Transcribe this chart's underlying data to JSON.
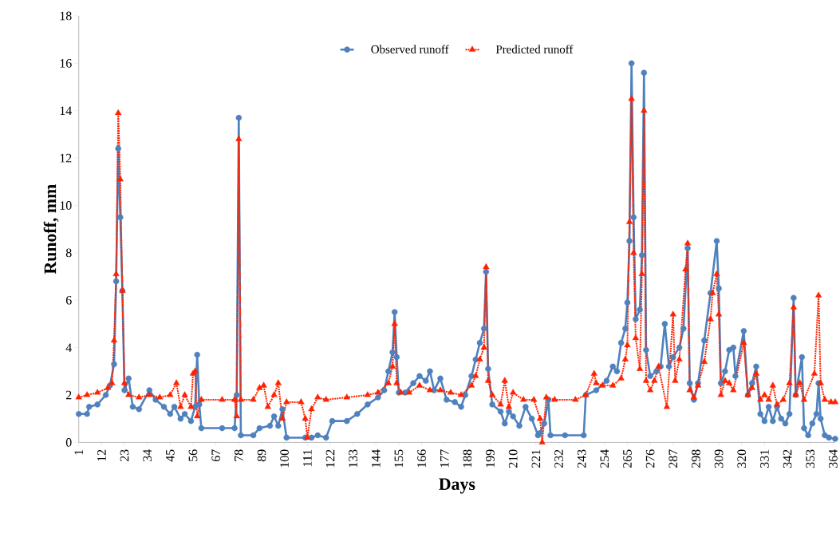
{
  "chart_data": {
    "type": "line",
    "xlabel": "Days",
    "ylabel": "Runoff, mm",
    "xlim": [
      1,
      365
    ],
    "xticks": [
      1,
      12,
      23,
      34,
      45,
      56,
      67,
      78,
      89,
      100,
      111,
      122,
      133,
      144,
      155,
      166,
      177,
      188,
      199,
      210,
      221,
      232,
      243,
      254,
      265,
      276,
      287,
      298,
      309,
      320,
      331,
      342,
      353,
      364
    ],
    "ylim": [
      0,
      18
    ],
    "yticks": [
      0,
      2,
      4,
      6,
      8,
      10,
      12,
      14,
      16,
      18
    ],
    "legend": "top",
    "grid": false,
    "series": [
      {
        "name": "Observed runoff",
        "color": "#4f81bd",
        "marker": "circle",
        "line_style": "solid",
        "x": [
          1,
          5,
          6,
          10,
          14,
          16,
          18,
          19,
          20,
          21,
          22,
          23,
          25,
          27,
          30,
          35,
          38,
          42,
          45,
          47,
          50,
          52,
          55,
          57,
          58,
          59,
          60,
          70,
          76,
          77,
          78,
          79,
          85,
          88,
          93,
          95,
          97,
          99,
          101,
          110,
          113,
          116,
          120,
          123,
          130,
          135,
          140,
          145,
          148,
          150,
          152,
          153,
          154,
          155,
          158,
          162,
          165,
          168,
          170,
          172,
          175,
          178,
          182,
          185,
          187,
          190,
          192,
          194,
          196,
          197,
          198,
          200,
          204,
          206,
          208,
          210,
          213,
          216,
          219,
          222,
          223,
          225,
          227,
          228,
          235,
          244,
          245,
          250,
          255,
          258,
          260,
          262,
          264,
          265,
          266,
          267,
          268,
          269,
          271,
          272,
          273,
          274,
          276,
          279,
          281,
          283,
          285,
          287,
          290,
          292,
          294,
          295,
          297,
          299,
          302,
          305,
          308,
          309,
          310,
          312,
          314,
          316,
          317,
          321,
          323,
          325,
          327,
          329,
          331,
          333,
          335,
          337,
          339,
          341,
          343,
          345,
          346,
          349,
          350,
          352,
          354,
          356,
          357,
          358,
          360,
          362,
          365
        ],
        "values": [
          1.2,
          1.2,
          1.5,
          1.6,
          2.0,
          2.4,
          3.3,
          6.8,
          12.4,
          9.5,
          6.4,
          2.2,
          2.7,
          1.5,
          1.4,
          2.2,
          1.8,
          1.5,
          1.2,
          1.5,
          1.0,
          1.2,
          0.9,
          1.5,
          3.7,
          1.6,
          0.6,
          0.6,
          0.6,
          2.0,
          13.7,
          0.3,
          0.3,
          0.6,
          0.7,
          1.1,
          0.7,
          1.4,
          0.2,
          0.2,
          0.2,
          0.3,
          0.2,
          0.9,
          0.9,
          1.2,
          1.6,
          1.9,
          2.2,
          3.0,
          3.8,
          5.5,
          3.6,
          2.1,
          2.1,
          2.5,
          2.8,
          2.6,
          3.0,
          2.2,
          2.7,
          1.8,
          1.7,
          1.5,
          2.0,
          2.8,
          3.5,
          4.2,
          4.8,
          7.2,
          3.1,
          1.6,
          1.3,
          0.8,
          1.3,
          1.1,
          0.7,
          1.5,
          1.0,
          0.3,
          0.4,
          0.8,
          1.8,
          0.3,
          0.3,
          0.3,
          2.0,
          2.2,
          2.6,
          3.2,
          3.0,
          4.2,
          4.8,
          5.9,
          8.5,
          16.0,
          9.5,
          5.2,
          5.6,
          7.9,
          15.6,
          3.9,
          2.8,
          3.0,
          3.2,
          5.0,
          3.2,
          3.6,
          4.0,
          4.8,
          8.2,
          2.5,
          1.8,
          2.5,
          4.3,
          6.3,
          8.5,
          6.5,
          2.5,
          3.0,
          3.9,
          4.0,
          2.8,
          4.7,
          2.0,
          2.5,
          3.2,
          1.2,
          0.9,
          1.5,
          0.9,
          1.5,
          1.0,
          0.8,
          1.2,
          6.1,
          2.0,
          3.6,
          0.6,
          0.3,
          0.8,
          1.2,
          2.5,
          1.0,
          0.3,
          0.2,
          0.15
        ]
      },
      {
        "name": "Predicted runoff",
        "color": "#ff2200",
        "marker": "triangle",
        "line_style": "dotted",
        "x": [
          1,
          5,
          10,
          15,
          17,
          18,
          19,
          20,
          21,
          22,
          23,
          25,
          30,
          35,
          40,
          45,
          48,
          50,
          52,
          55,
          56,
          57,
          58,
          60,
          70,
          76,
          77,
          78,
          79,
          85,
          88,
          90,
          92,
          95,
          97,
          99,
          101,
          108,
          110,
          111,
          113,
          116,
          120,
          130,
          140,
          145,
          150,
          152,
          153,
          154,
          156,
          160,
          165,
          170,
          175,
          180,
          185,
          190,
          192,
          194,
          196,
          197,
          198,
          200,
          204,
          206,
          208,
          210,
          215,
          220,
          223,
          224,
          226,
          230,
          240,
          245,
          249,
          250,
          253,
          258,
          262,
          264,
          265,
          266,
          267,
          268,
          269,
          271,
          272,
          273,
          274,
          276,
          278,
          280,
          284,
          287,
          288,
          290,
          293,
          294,
          295,
          297,
          299,
          302,
          305,
          306,
          308,
          309,
          310,
          312,
          314,
          316,
          321,
          323,
          325,
          327,
          329,
          331,
          333,
          335,
          337,
          340,
          343,
          345,
          346,
          348,
          350,
          355,
          357,
          358,
          360,
          363,
          365
        ],
        "values": [
          1.9,
          2.0,
          2.1,
          2.3,
          2.5,
          4.3,
          7.1,
          13.9,
          11.1,
          6.4,
          2.5,
          2.0,
          1.9,
          2.0,
          1.9,
          2.0,
          2.5,
          1.5,
          2.0,
          1.5,
          2.9,
          3.0,
          1.1,
          1.8,
          1.8,
          1.8,
          1.1,
          12.8,
          1.8,
          1.8,
          2.3,
          2.4,
          1.5,
          2.0,
          2.5,
          1.0,
          1.7,
          1.7,
          1.0,
          0.2,
          1.4,
          1.9,
          1.8,
          1.9,
          2.0,
          2.1,
          2.5,
          3.2,
          5.0,
          2.5,
          2.1,
          2.1,
          2.4,
          2.2,
          2.2,
          2.1,
          2.0,
          2.4,
          2.8,
          3.5,
          4.0,
          7.4,
          2.6,
          2.0,
          1.6,
          2.6,
          1.5,
          2.1,
          1.8,
          1.8,
          1.0,
          0.0,
          1.9,
          1.8,
          1.8,
          2.0,
          2.9,
          2.5,
          2.4,
          2.4,
          2.7,
          3.5,
          4.1,
          9.3,
          14.5,
          8.0,
          4.4,
          3.1,
          7.1,
          14.0,
          2.6,
          2.2,
          2.6,
          3.2,
          1.5,
          5.4,
          2.6,
          3.5,
          7.3,
          8.4,
          2.2,
          1.9,
          2.4,
          3.4,
          5.2,
          6.3,
          7.1,
          5.4,
          2.0,
          2.6,
          2.5,
          2.2,
          4.2,
          2.0,
          2.3,
          2.9,
          1.8,
          2.0,
          1.8,
          2.4,
          1.6,
          1.8,
          2.5,
          5.7,
          2.0,
          2.5,
          1.8,
          2.9,
          6.2,
          2.5,
          1.8,
          1.7,
          1.7
        ]
      }
    ]
  }
}
